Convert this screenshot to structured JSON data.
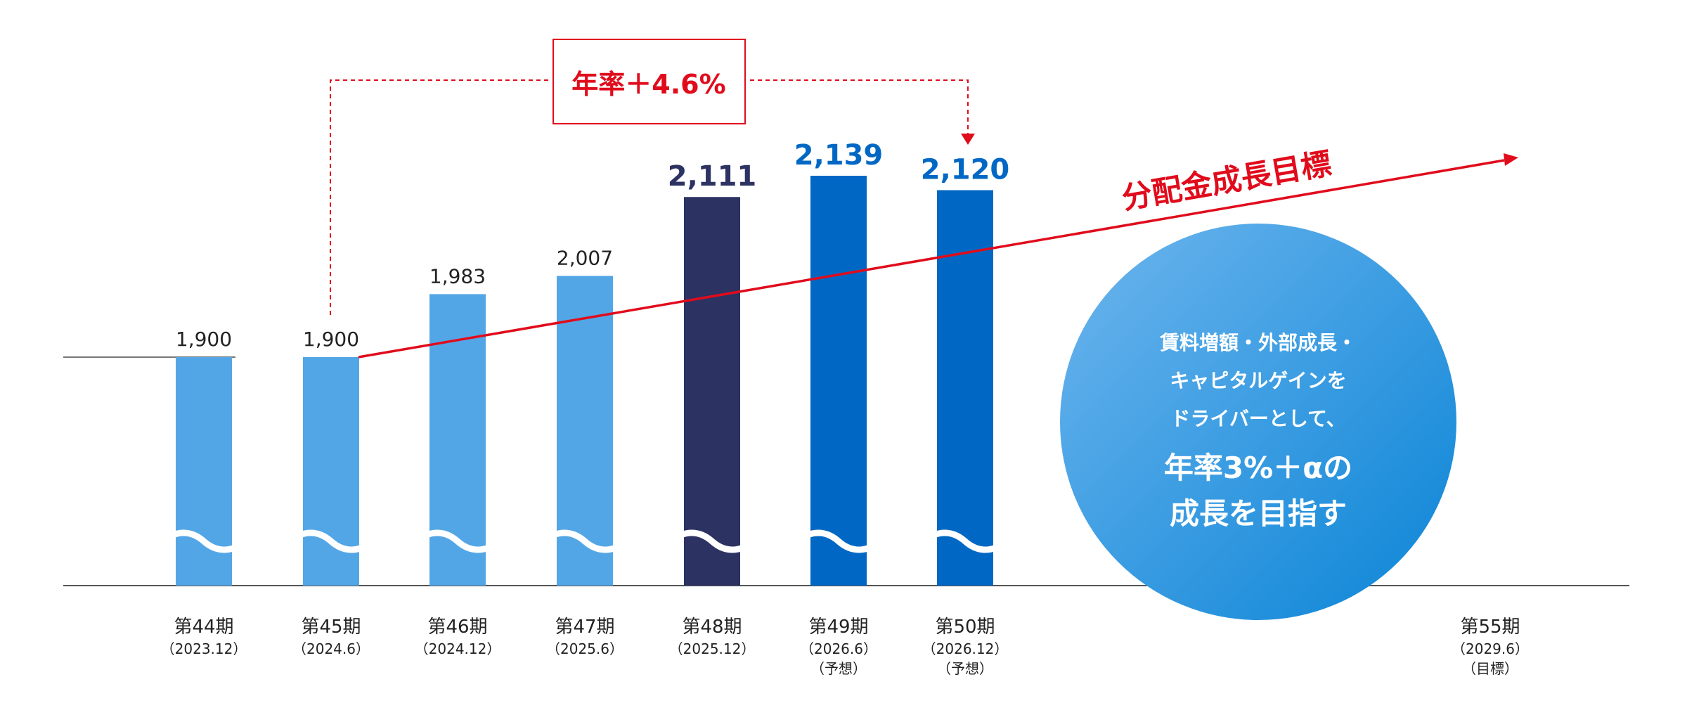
{
  "chart_data": {
    "type": "bar",
    "categories": [
      "第44期",
      "第45期",
      "第46期",
      "第47期",
      "第48期",
      "第49期",
      "第50期",
      "第55期"
    ],
    "category_sublabels": [
      [
        "（2023.12）"
      ],
      [
        "（2024.6）"
      ],
      [
        "（2024.12）"
      ],
      [
        "（2025.6）"
      ],
      [
        "（2025.12）"
      ],
      [
        "（2026.6）",
        "（予想）"
      ],
      [
        "（2026.12）",
        "（予想）"
      ],
      [
        "（2029.6）",
        "（目標）"
      ]
    ],
    "values": [
      1900,
      1900,
      1983,
      2007,
      2111,
      2139,
      2120,
      null
    ],
    "value_labels": [
      "1,900",
      "1,900",
      "1,983",
      "2,007",
      "2,111",
      "2,139",
      "2,120",
      ""
    ],
    "bar_colors": [
      "#53a6e6",
      "#53a6e6",
      "#53a6e6",
      "#53a6e6",
      "#2c3262",
      "#0068c4",
      "#0068c4",
      ""
    ],
    "value_label_colors": [
      "#222222",
      "#222222",
      "#222222",
      "#222222",
      "#2c3262",
      "#0068c4",
      "#0068c4",
      ""
    ],
    "axis_break": true,
    "ylim": [
      1820,
      2160
    ],
    "baseline_value": 1900,
    "growth_annotation": {
      "label": "年率＋4.6%",
      "from_category": "第45期",
      "to_category": "第50期",
      "color": "#e00c1c"
    },
    "target_arrow": {
      "label": "分配金成長目標",
      "from_category": "第45期",
      "from_value": 1900,
      "color": "#e00c1c"
    },
    "callout": {
      "lines": [
        "賃料増額・外部成長・",
        "キャピタルゲインを",
        "ドライバーとして、"
      ],
      "highlight_lines": [
        "年率3%＋αの",
        "成長を目指す"
      ],
      "gradient_from": "#6eb6ee",
      "gradient_to": "#0a84d6"
    },
    "title": "",
    "xlabel": "",
    "ylabel": ""
  }
}
